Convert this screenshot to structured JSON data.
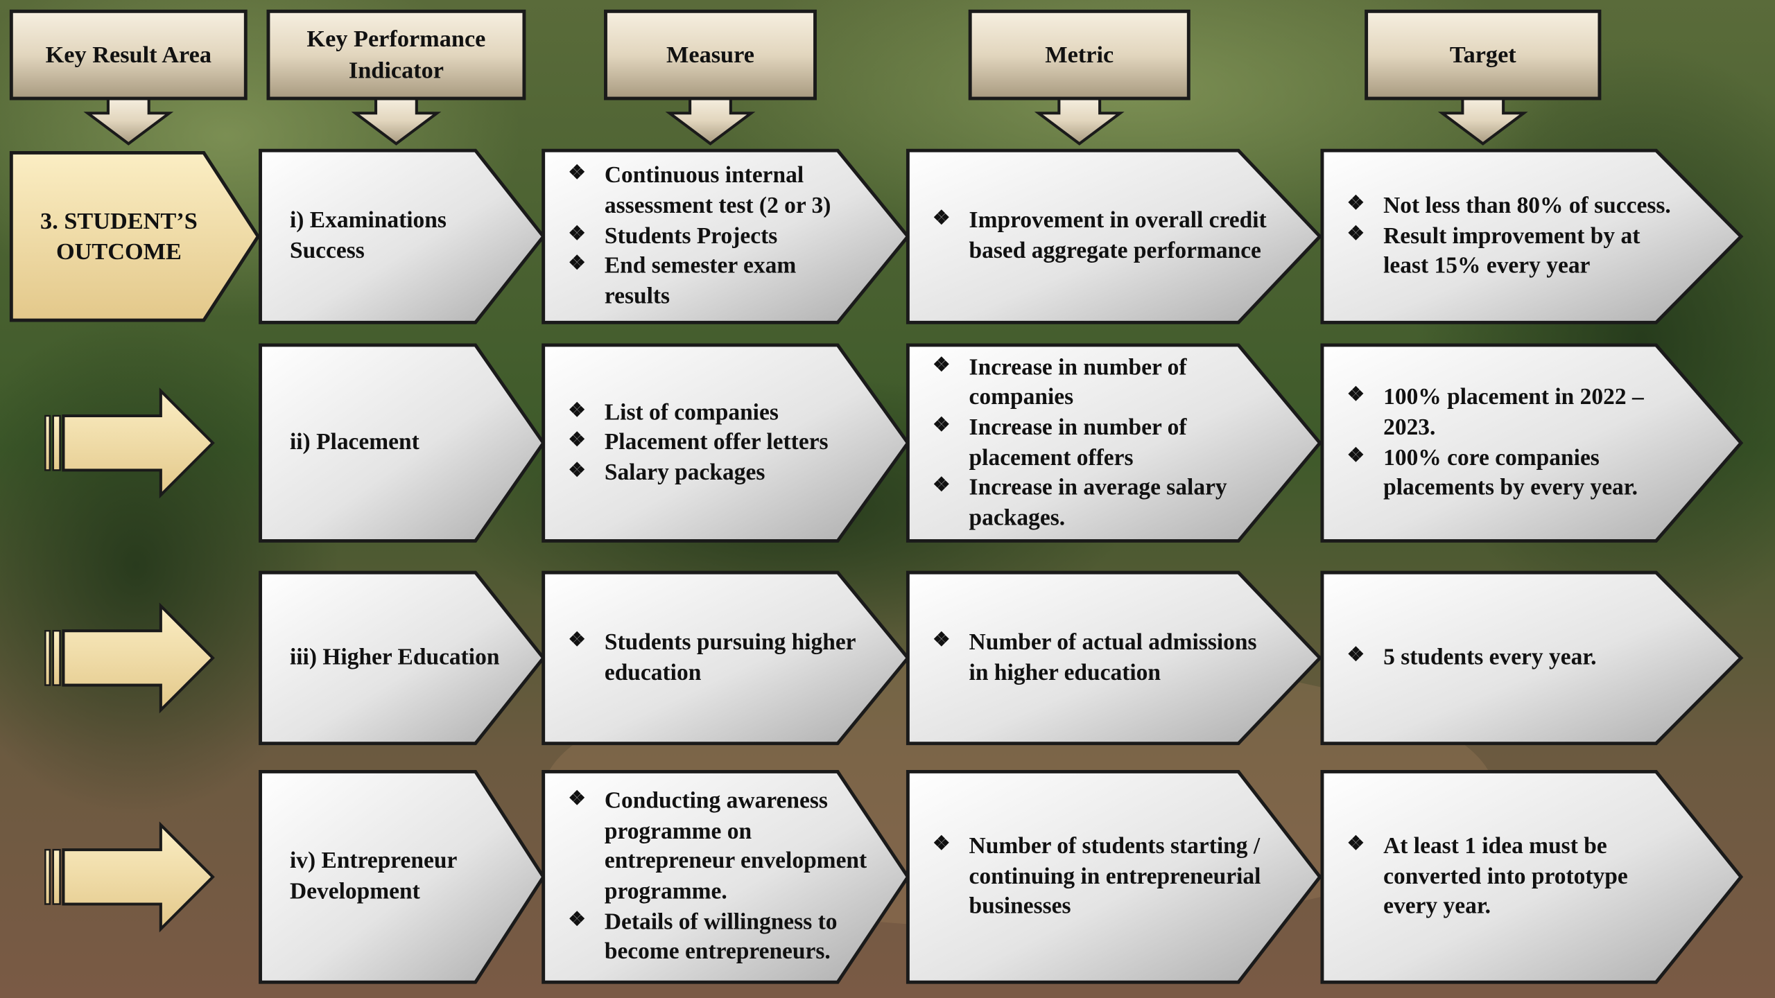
{
  "headers": [
    "Key Result Area",
    "Key Performance Indicator",
    "Measure",
    "Metric",
    "Target"
  ],
  "kra": "3. STUDENT’S OUTCOME",
  "rows": [
    {
      "kpi": "i) Examinations Success",
      "measure": [
        "Continuous internal assessment test (2 or 3)",
        "Students Projects",
        "End semester exam results"
      ],
      "metric": [
        "Improvement in overall credit based aggregate performance"
      ],
      "target": [
        "Not less than 80% of success.",
        "Result improvement by at least 15% every year"
      ]
    },
    {
      "kpi": "ii) Placement",
      "measure": [
        "List of companies",
        "Placement offer letters",
        "Salary packages"
      ],
      "metric": [
        "Increase in number of companies",
        "Increase in number of placement offers",
        "Increase in average salary packages."
      ],
      "target": [
        "100% placement in 2022 – 2023.",
        "100% core companies placements by every year."
      ]
    },
    {
      "kpi": "iii) Higher Education",
      "measure": [
        "Students pursuing higher education"
      ],
      "metric": [
        "Number of actual admissions in higher education"
      ],
      "target": [
        "5 students every year."
      ]
    },
    {
      "kpi": "iv) Entrepreneur Development",
      "measure": [
        "Conducting awareness programme on entrepreneur envelopment programme.",
        "Details of willingness to become entrepreneurs."
      ],
      "metric": [
        "Number of students starting / continuing in entrepreneurial businesses"
      ],
      "target": [
        "At least 1 idea must be converted into prototype every year."
      ]
    }
  ]
}
